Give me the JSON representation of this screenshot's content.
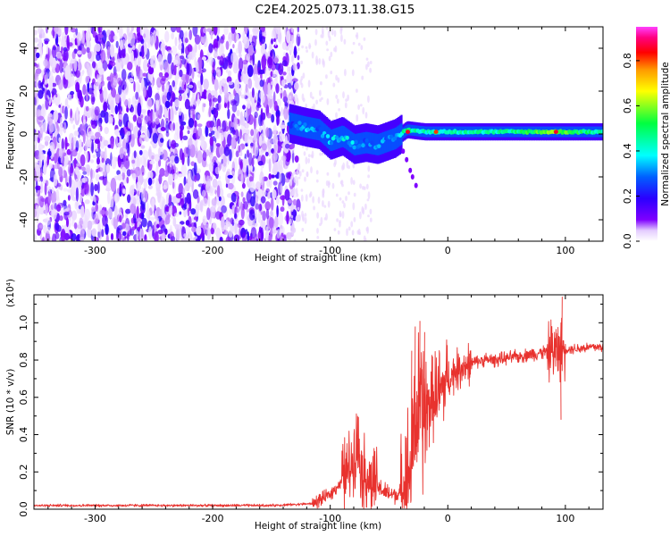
{
  "title": "C2E4.2025.073.11.38.G15",
  "colors": {
    "snr_line": "#e8322e",
    "spectrogram_noise": "#7a1fe0",
    "colormap": [
      "#ffffff",
      "#e4ccff",
      "#7f00ff",
      "#2a00ff",
      "#0060ff",
      "#00ffff",
      "#00ff40",
      "#ffff00",
      "#ff9900",
      "#ff0000",
      "#ff0080",
      "#ff40ff"
    ]
  },
  "chart_data": [
    {
      "type": "heatmap",
      "name": "spectrogram",
      "xlabel": "Height of straight line (km)",
      "ylabel": "Frequency (Hz)",
      "xlim": [
        -352,
        132
      ],
      "ylim": [
        -50,
        50
      ],
      "xticks": [
        -300,
        -200,
        -100,
        0,
        100
      ],
      "yticks": [
        -40,
        -20,
        0,
        20,
        40
      ],
      "colorbar": {
        "label": "Normalized spectral amplitude",
        "range": [
          0,
          0.95
        ],
        "ticks": [
          0.0,
          0.2,
          0.4,
          0.6,
          0.8
        ]
      },
      "features": {
        "noise_region_x": [
          -352,
          -135
        ],
        "signal_trace": [
          {
            "x": -135,
            "y": 5,
            "amp": 0.25
          },
          {
            "x": -120,
            "y": 3,
            "amp": 0.35
          },
          {
            "x": -110,
            "y": 2,
            "amp": 0.3
          },
          {
            "x": -100,
            "y": -3,
            "amp": 0.35
          },
          {
            "x": -90,
            "y": -1,
            "amp": 0.4
          },
          {
            "x": -80,
            "y": -5,
            "amp": 0.35
          },
          {
            "x": -70,
            "y": -4,
            "amp": 0.3
          },
          {
            "x": -60,
            "y": -5,
            "amp": 0.3
          },
          {
            "x": -45,
            "y": -2,
            "amp": 0.35
          },
          {
            "x": -35,
            "y": 2,
            "amp": 0.5
          },
          {
            "x": -20,
            "y": 1,
            "amp": 0.45
          },
          {
            "x": 0,
            "y": 1,
            "amp": 0.45
          },
          {
            "x": 40,
            "y": 1,
            "amp": 0.45
          },
          {
            "x": 90,
            "y": 1,
            "amp": 0.6
          },
          {
            "x": 132,
            "y": 1,
            "amp": 0.45
          }
        ]
      }
    },
    {
      "type": "line",
      "name": "snr",
      "xlabel": "Height of straight line (km)",
      "ylabel": "SNR (10 * v/v)",
      "yscale_note": "(x10⁴)",
      "xlim": [
        -352,
        132
      ],
      "ylim": [
        0,
        1.15
      ],
      "xticks": [
        -300,
        -200,
        -100,
        0,
        100
      ],
      "yticks": [
        0.0,
        0.2,
        0.4,
        0.6,
        0.8,
        1.0
      ],
      "series": [
        {
          "x": [
            -352,
            -300,
            -250,
            -200,
            -150,
            -115,
            -100,
            -90,
            -82,
            -77,
            -72,
            -66,
            -60,
            -50,
            -40,
            -32,
            -28,
            -24,
            -20,
            -16,
            -12,
            -8,
            -4,
            0,
            10,
            20,
            30,
            40,
            50,
            60,
            70,
            80,
            90,
            96,
            100,
            110,
            120,
            132
          ],
          "y": [
            0.02,
            0.02,
            0.02,
            0.02,
            0.02,
            0.03,
            0.08,
            0.15,
            0.25,
            0.35,
            0.2,
            0.15,
            0.12,
            0.08,
            0.08,
            0.2,
            0.45,
            0.55,
            0.5,
            0.55,
            0.6,
            0.62,
            0.65,
            0.7,
            0.76,
            0.78,
            0.8,
            0.8,
            0.81,
            0.82,
            0.83,
            0.84,
            0.85,
            0.86,
            0.86,
            0.86,
            0.87,
            0.87
          ]
        }
      ]
    }
  ]
}
